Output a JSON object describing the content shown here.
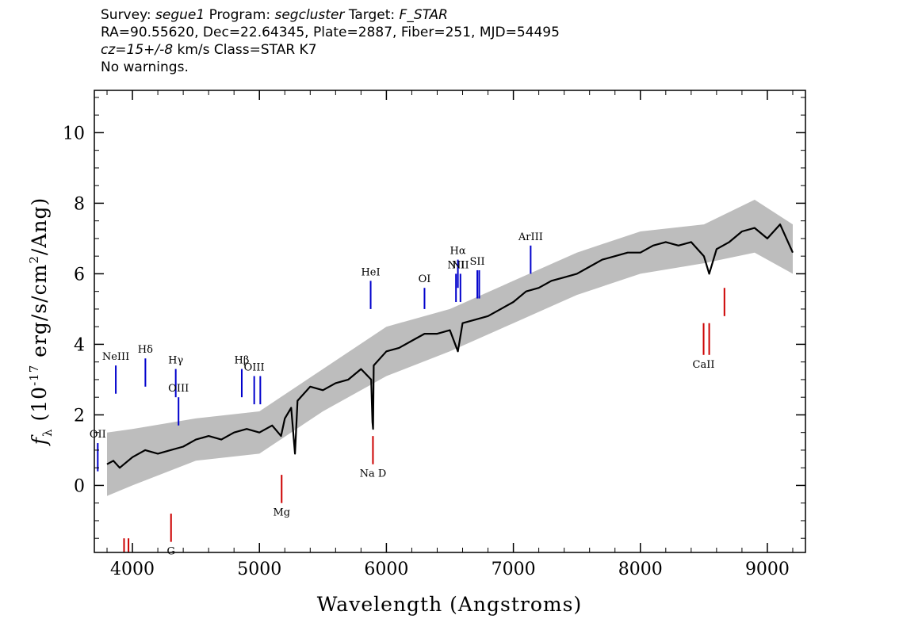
{
  "header": {
    "line1": {
      "survey_label": "Survey:",
      "survey": "segue1",
      "program_label": "Program:",
      "program": "segcluster",
      "target_label": "Target:",
      "target": "F_STAR"
    },
    "line2": "RA=90.55620, Dec=22.64345, Plate=2887, Fiber=251, MJD=54495",
    "line3": {
      "cz": "cz=15+/-8",
      "rest": "km/s  Class=STAR  K7"
    },
    "line4": "No warnings."
  },
  "chart_data": {
    "type": "line",
    "xlabel": "Wavelength (Angstroms)",
    "ylabel": "f_λ (10^-17 erg/s/cm^2/Ang)",
    "xlim": [
      3700,
      9300
    ],
    "ylim": [
      -1.9,
      11.2
    ],
    "x_ticks": [
      4000,
      5000,
      6000,
      7000,
      8000,
      9000
    ],
    "y_ticks": [
      0,
      2,
      4,
      6,
      8,
      10
    ],
    "grid": false,
    "series": [
      {
        "role": "flux",
        "color": "#000000",
        "x": [
          3800,
          3850,
          3900,
          4000,
          4100,
          4200,
          4300,
          4400,
          4500,
          4600,
          4700,
          4800,
          4900,
          5000,
          5100,
          5170,
          5200,
          5250,
          5280,
          5300,
          5400,
          5500,
          5600,
          5700,
          5800,
          5880,
          5890,
          5895,
          5900,
          5950,
          6000,
          6100,
          6200,
          6300,
          6400,
          6500,
          6563,
          6600,
          6700,
          6800,
          6900,
          7000,
          7100,
          7200,
          7300,
          7400,
          7500,
          7600,
          7700,
          7800,
          7900,
          8000,
          8100,
          8200,
          8300,
          8400,
          8500,
          8542,
          8600,
          8700,
          8800,
          8900,
          9000,
          9100,
          9200
        ],
        "y": [
          0.6,
          0.7,
          0.5,
          0.8,
          1.0,
          0.9,
          1.0,
          1.1,
          1.3,
          1.4,
          1.3,
          1.5,
          1.6,
          1.5,
          1.7,
          1.4,
          1.9,
          2.2,
          0.9,
          2.4,
          2.8,
          2.7,
          2.9,
          3.0,
          3.3,
          3.0,
          1.8,
          1.6,
          3.4,
          3.6,
          3.8,
          3.9,
          4.1,
          4.3,
          4.3,
          4.4,
          3.8,
          4.6,
          4.7,
          4.8,
          5.0,
          5.2,
          5.5,
          5.6,
          5.8,
          5.9,
          6.0,
          6.2,
          6.4,
          6.5,
          6.6,
          6.6,
          6.8,
          6.9,
          6.8,
          6.9,
          6.5,
          6.0,
          6.7,
          6.9,
          7.2,
          7.3,
          7.0,
          7.4,
          6.6
        ]
      },
      {
        "role": "error band",
        "color": "#bdbdbd",
        "x": [
          3800,
          4000,
          4500,
          5000,
          5500,
          6000,
          6500,
          7000,
          7500,
          8000,
          8500,
          8900,
          9200
        ],
        "y_low": [
          -0.3,
          0.0,
          0.7,
          0.9,
          2.1,
          3.1,
          3.8,
          4.6,
          5.4,
          6.0,
          6.3,
          6.6,
          6.0
        ],
        "y_high": [
          1.5,
          1.6,
          1.9,
          2.1,
          3.3,
          4.5,
          5.0,
          5.8,
          6.6,
          7.2,
          7.4,
          8.1,
          7.4
        ]
      }
    ],
    "emission_lines": [
      {
        "label": "OII",
        "x": 3727,
        "y_from": 0.4,
        "y_to": 1.2,
        "color": "#0000cc"
      },
      {
        "label": "NeIII",
        "x": 3869,
        "y_from": 2.6,
        "y_to": 3.4,
        "color": "#0000cc"
      },
      {
        "label": "Hδ",
        "x": 4102,
        "y_from": 2.8,
        "y_to": 3.6,
        "color": "#0000cc"
      },
      {
        "label": "Hγ",
        "x": 4341,
        "y_from": 2.5,
        "y_to": 3.3,
        "color": "#0000cc"
      },
      {
        "label": "OIII",
        "x": 4363,
        "y_from": 1.7,
        "y_to": 2.5,
        "color": "#0000cc"
      },
      {
        "label": "Hβ",
        "x": 4861,
        "y_from": 2.5,
        "y_to": 3.3,
        "color": "#0000cc"
      },
      {
        "label": "OIII",
        "x": 4959,
        "y_from": 2.3,
        "y_to": 3.1,
        "color": "#0000cc"
      },
      {
        "label": "",
        "x": 5007,
        "y_from": 2.3,
        "y_to": 3.1,
        "color": "#0000cc"
      },
      {
        "label": "HeI",
        "x": 5876,
        "y_from": 5.0,
        "y_to": 5.8,
        "color": "#0000cc"
      },
      {
        "label": "OI",
        "x": 6300,
        "y_from": 5.0,
        "y_to": 5.6,
        "color": "#0000cc"
      },
      {
        "label": "NII",
        "x": 6548,
        "y_from": 5.2,
        "y_to": 6.0,
        "color": "#0000cc"
      },
      {
        "label": "Hα",
        "x": 6563,
        "y_from": 5.6,
        "y_to": 6.4,
        "color": "#0000cc"
      },
      {
        "label": "NII",
        "x": 6583,
        "y_from": 5.2,
        "y_to": 6.0,
        "color": "#0000cc"
      },
      {
        "label": "SII",
        "x": 6716,
        "y_from": 5.3,
        "y_to": 6.1,
        "color": "#0000cc"
      },
      {
        "label": "",
        "x": 6731,
        "y_from": 5.3,
        "y_to": 6.1,
        "color": "#0000cc"
      },
      {
        "label": "ArIII",
        "x": 7136,
        "y_from": 6.0,
        "y_to": 6.8,
        "color": "#0000cc"
      }
    ],
    "absorption_lines": [
      {
        "label": "",
        "x": 3934,
        "y_from": -2.0,
        "y_to": -1.5,
        "color": "#cc0000"
      },
      {
        "label": "",
        "x": 3969,
        "y_from": -2.0,
        "y_to": -1.5,
        "color": "#cc0000"
      },
      {
        "label": "G",
        "x": 4304,
        "y_from": -1.6,
        "y_to": -0.8,
        "color": "#cc0000"
      },
      {
        "label": "Mg",
        "x": 5175,
        "y_from": -0.5,
        "y_to": 0.3,
        "color": "#cc0000"
      },
      {
        "label": "Na D",
        "x": 5894,
        "y_from": 0.6,
        "y_to": 1.4,
        "color": "#cc0000"
      },
      {
        "label": "CaII",
        "x": 8498,
        "y_from": 3.7,
        "y_to": 4.6,
        "color": "#cc0000"
      },
      {
        "label": "",
        "x": 8542,
        "y_from": 3.7,
        "y_to": 4.6,
        "color": "#cc0000"
      },
      {
        "label": "",
        "x": 8662,
        "y_from": 4.8,
        "y_to": 5.6,
        "color": "#cc0000"
      }
    ]
  }
}
